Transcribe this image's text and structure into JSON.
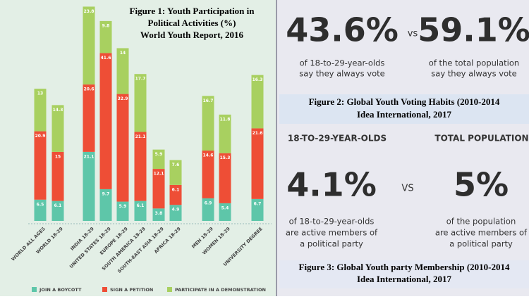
{
  "chart_data": {
    "type": "stacked_bar",
    "title": [
      "Figure 1: Youth Participation in",
      "Political Activities (%)",
      "World Youth Report, 2016"
    ],
    "categories": [
      "WORLD ALL AGES",
      "WORLD 18-29",
      "INDIA 18-29",
      "UNITED STATES 18-29",
      "EUROPE 18-29",
      "SOUTH AMERICA 18-29",
      "SOUTH-EAST ASIA 18-29",
      "AFRICA 18-29",
      "MEN 18-29",
      "WOMEN 18-29",
      "UNIVERSITY DEGREE"
    ],
    "series": [
      {
        "name": "JOIN A BOYCOTT",
        "color": "#5ec6a9",
        "values": [
          6.5,
          6.1,
          21.1,
          9.7,
          5.9,
          6.1,
          3.8,
          4.9,
          6.9,
          5.4,
          6.7
        ]
      },
      {
        "name": "SIGN A PETITION",
        "color": "#ee4e36",
        "values": [
          20.9,
          15,
          20.6,
          41.6,
          32.9,
          21.1,
          12.1,
          6.1,
          14.6,
          15.3,
          21.6
        ]
      },
      {
        "name": "PARTICIPATE IN A DEMONSTRATION",
        "color": "#a8d060",
        "values": [
          13,
          14.3,
          23.8,
          9.8,
          14,
          17.7,
          5.9,
          7.6,
          16.7,
          11.8,
          16.3
        ]
      }
    ]
  },
  "figure2": {
    "left_value": "43.6%",
    "vs": "vs",
    "right_value": "59.1%",
    "left_text": [
      "of 18-to-29-year-olds",
      "say they always vote"
    ],
    "right_text": [
      "of the total population",
      "say they always vote"
    ],
    "caption": [
      "Figure 2: Global Youth Voting Habits (2010-2014",
      "Idea International, 2017"
    ]
  },
  "figure3": {
    "left_heading": "18-TO-29-YEAR-OLDS",
    "right_heading": "TOTAL POPULATION",
    "left_value": "4.1%",
    "vs": "VS",
    "right_value": "5%",
    "left_text": [
      "of 18-to-29-year-olds",
      "are active members of",
      "a political party"
    ],
    "right_text": [
      "of the population",
      "are active members of",
      "a political party"
    ],
    "caption": [
      "Figure 3: Global Youth party Membership (2010-2014",
      "Idea International, 2017"
    ]
  }
}
